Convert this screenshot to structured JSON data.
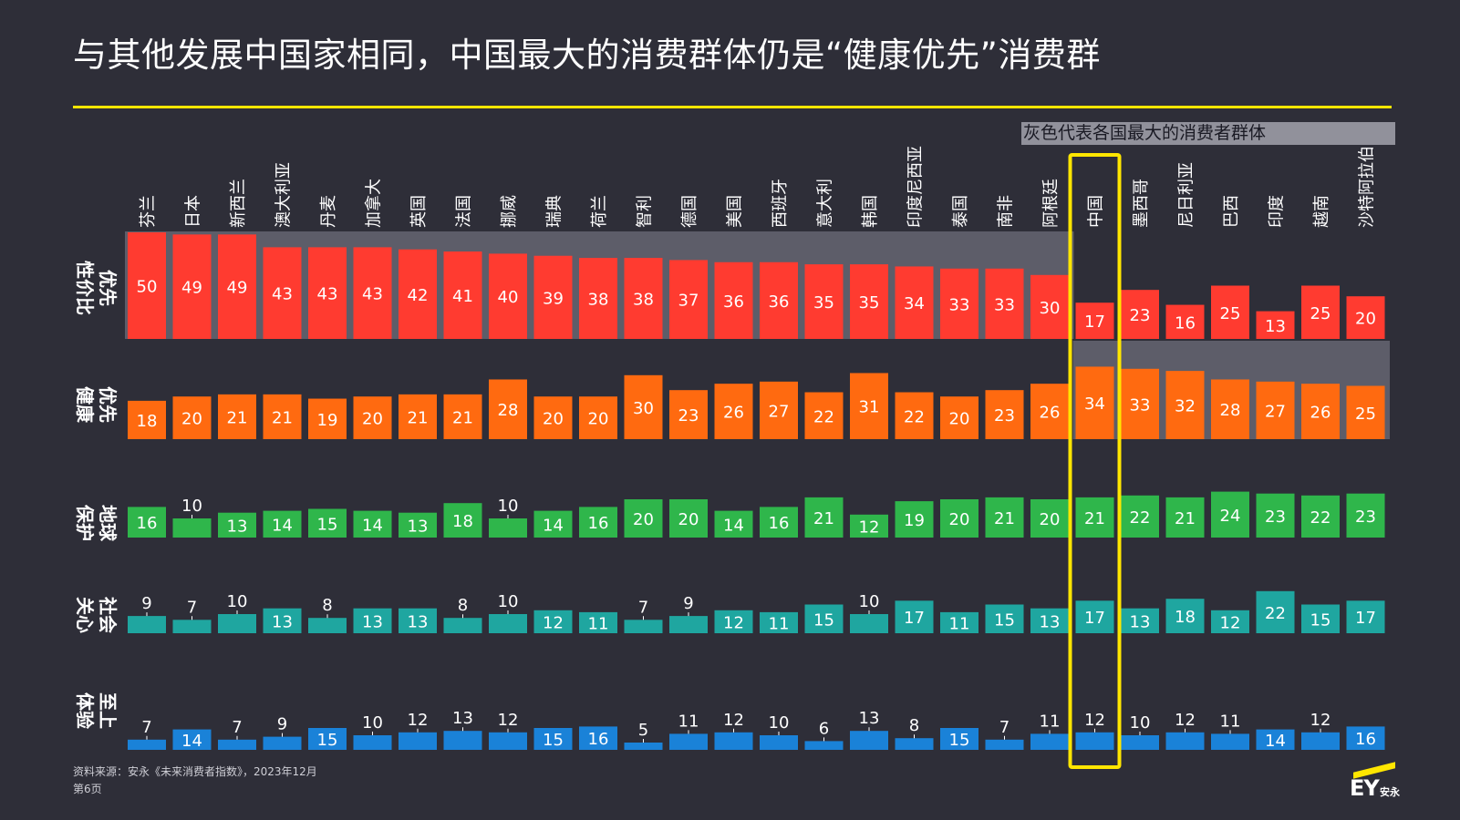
{
  "title": "与其他发展中国家相同，中国最大的消费群体仍是“健康优先”消费群",
  "note": "灰色代表各国最大的消费者群体",
  "source": "资料来源：安永《未来消费者指数》，2023年12月",
  "page": "第6页",
  "logo": {
    "mark": "EY",
    "cn": "安永"
  },
  "colors": {
    "background": "#2e2e38",
    "accent": "#ffe600",
    "highlight_gray": "#5d5d69",
    "series": [
      "#ff3b30",
      "#ff6a10",
      "#2fb64b",
      "#1fa6a0",
      "#1a82d8"
    ]
  },
  "chart_data": {
    "type": "bar",
    "categories": [
      "芬兰",
      "日本",
      "新西兰",
      "澳大利亚",
      "丹麦",
      "加拿大",
      "英国",
      "法国",
      "挪威",
      "瑞典",
      "荷兰",
      "智利",
      "德国",
      "美国",
      "西班牙",
      "意大利",
      "韩国",
      "印度尼西亚",
      "泰国",
      "南非",
      "阿根廷",
      "中国",
      "墨西哥",
      "尼日利亚",
      "巴西",
      "印度",
      "越南",
      "沙特阿拉伯"
    ],
    "series": [
      {
        "name": "性价比优先",
        "values": [
          50,
          49,
          49,
          43,
          43,
          43,
          42,
          41,
          40,
          39,
          38,
          38,
          37,
          36,
          36,
          35,
          35,
          34,
          33,
          33,
          30,
          17,
          23,
          16,
          25,
          13,
          25,
          20
        ]
      },
      {
        "name": "健康优先",
        "values": [
          18,
          20,
          21,
          21,
          19,
          20,
          21,
          21,
          28,
          20,
          20,
          30,
          23,
          26,
          27,
          22,
          31,
          22,
          20,
          23,
          26,
          34,
          33,
          32,
          28,
          27,
          26,
          25
        ]
      },
      {
        "name": "保护地球",
        "values": [
          16,
          10,
          13,
          14,
          15,
          14,
          13,
          18,
          10,
          14,
          16,
          20,
          20,
          14,
          16,
          21,
          12,
          19,
          20,
          21,
          20,
          21,
          22,
          21,
          24,
          23,
          22,
          23
        ]
      },
      {
        "name": "关心社会",
        "values": [
          9,
          7,
          10,
          13,
          8,
          13,
          13,
          8,
          10,
          12,
          11,
          7,
          9,
          12,
          11,
          15,
          10,
          17,
          11,
          15,
          13,
          17,
          13,
          18,
          12,
          22,
          15,
          17
        ]
      },
      {
        "name": "体验至上",
        "values": [
          7,
          14,
          7,
          9,
          15,
          10,
          12,
          13,
          12,
          15,
          16,
          5,
          11,
          12,
          10,
          6,
          13,
          8,
          15,
          7,
          11,
          12,
          10,
          12,
          11,
          14,
          12,
          16
        ]
      }
    ],
    "row_labels": [
      [
        "性价比",
        "优先"
      ],
      [
        "健康",
        "优先"
      ],
      [
        "保护",
        "地球"
      ],
      [
        "关心",
        "社会"
      ],
      [
        "体验",
        "至上"
      ]
    ],
    "largest_group_by_country": [
      0,
      0,
      0,
      0,
      0,
      0,
      0,
      0,
      0,
      0,
      0,
      0,
      0,
      0,
      0,
      0,
      0,
      0,
      0,
      0,
      0,
      1,
      1,
      1,
      1,
      1,
      1,
      1
    ],
    "highlighted_category": "中国",
    "values_shown_as_labels": true
  }
}
